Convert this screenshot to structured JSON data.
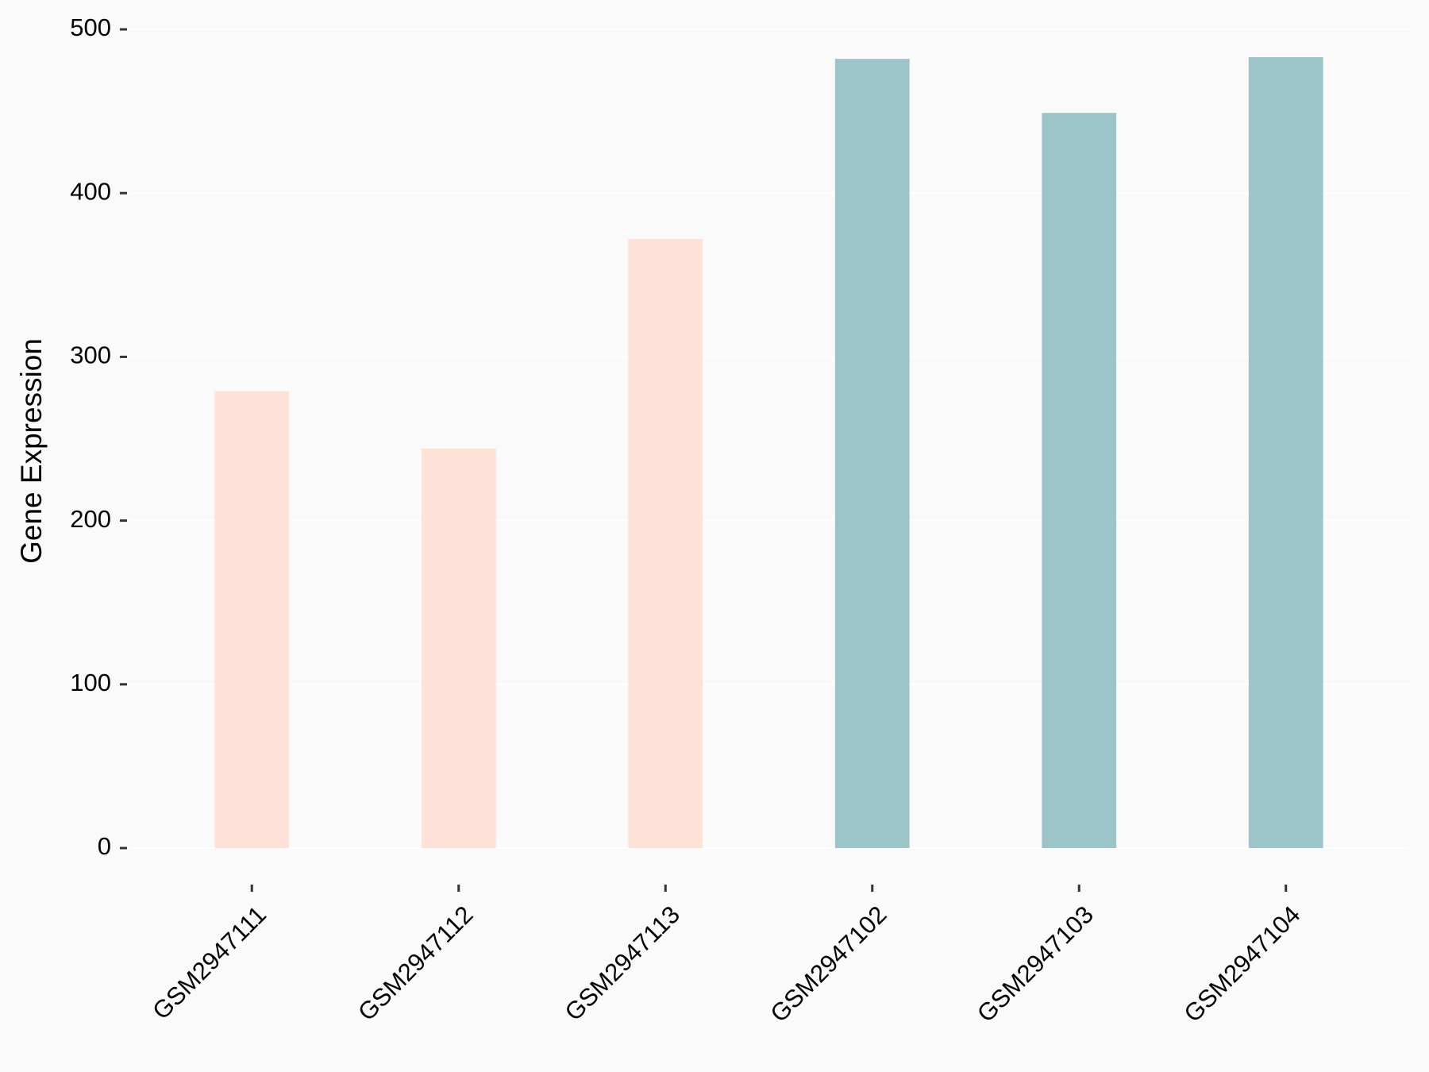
{
  "chart_data": {
    "type": "bar",
    "y_label": "Gene Expression",
    "categories": [
      "GSM2947111",
      "GSM2947112",
      "GSM2947113",
      "GSM2947102",
      "GSM2947103",
      "GSM2947104"
    ],
    "values": [
      279,
      244,
      372,
      482,
      449,
      483
    ],
    "colors": [
      "#fee1d7",
      "#fee1d7",
      "#fee1d7",
      "#9dc4c8",
      "#9dc4c8",
      "#9dc4c8"
    ],
    "ylim": [
      0,
      500
    ],
    "yticks": [
      0,
      100,
      200,
      300,
      400,
      500
    ],
    "grid": true
  }
}
